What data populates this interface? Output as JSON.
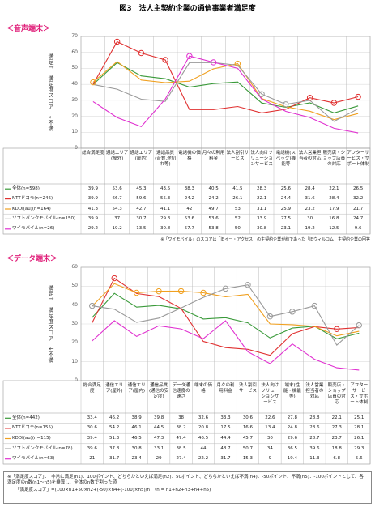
{
  "title": "図3　法人主契約企業の通信事業者満足度",
  "chart_data": [
    {
      "type": "line",
      "title": "＜音声端末＞",
      "y_label": "満足↑　満足度スコア　↓不満",
      "categories": [
        "総合満足度",
        "通話エリア(屋外)",
        "通話エリア(屋内)",
        "通話品質(音質,途切れ等)",
        "電話機の価格",
        "月々の利用料金",
        "法人割引サービス",
        "法人向けソリューションサービス",
        "電話機(スペック)機能等",
        "法人営業担当者の対応",
        "販売店・ショップ店員の対応",
        "アフターサービス・サポート体制"
      ],
      "series": [
        {
          "name": "全体(n=598)",
          "color": "#3a9a3a",
          "values": [
            39.9,
            53.6,
            45.3,
            43.5,
            38.3,
            40.5,
            41.5,
            28.3,
            25.6,
            28.4,
            22.1,
            26.5
          ]
        },
        {
          "name": "NTTドコモ(n=246)",
          "color": "#e03030",
          "values": [
            39.9,
            66.7,
            59.6,
            55.3,
            24.2,
            24.2,
            26.1,
            22.1,
            24.4,
            31.6,
            28.4,
            32.2
          ]
        },
        {
          "name": "KDDI(au)(n=164)",
          "color": "#f0a020",
          "values": [
            41.3,
            54.3,
            42.7,
            41.1,
            42.0,
            49.7,
            53.0,
            31.1,
            25.9,
            23.2,
            17.9,
            21.7
          ]
        },
        {
          "name": "ソフトバンクモバイル(n=150)",
          "color": "#999999",
          "values": [
            39.9,
            37.0,
            30.7,
            29.3,
            53.6,
            53.6,
            52.0,
            33.9,
            27.5,
            30.0,
            16.8,
            24.7
          ]
        },
        {
          "name": "ワイモバイル(n=26)",
          "color": "#e030d0",
          "values": [
            29.2,
            19.2,
            13.5,
            30.8,
            57.7,
            53.8,
            50.0,
            30.8,
            23.1,
            19.2,
            12.5,
            9.6
          ]
        }
      ],
      "ylim": [
        0,
        70
      ],
      "yticks": [
        0,
        10,
        20,
        30,
        40,
        50,
        60,
        70
      ],
      "grid": true,
      "note": "※「ワイモバイル」のスコアは「旧イー・アクセス」の主契約企業が約であった「旧ウィルコム」主契約企業の回答"
    },
    {
      "type": "line",
      "title": "＜データ端末＞",
      "y_label": "満足↑　満足度スコア　↓不満",
      "categories": [
        "総合満足度",
        "通信エリア(屋外)",
        "通信エリア(屋内)",
        "通信品質(通信の安定度)",
        "データ通信速度の速さ",
        "端末の価格",
        "月々の利用料金",
        "法人割引サービス",
        "法人向けソリューションサービス",
        "端末(性能・機能等)",
        "法人営業担当者の対応",
        "販売店・ショップ店員の対応",
        "アフターサービス・サポート体制"
      ],
      "series": [
        {
          "name": "全体(n=442)",
          "color": "#3a9a3a",
          "values": [
            33.4,
            46.2,
            38.9,
            39.8,
            38.0,
            32.6,
            33.3,
            30.6,
            22.6,
            27.8,
            28.8,
            22.1,
            25.1
          ]
        },
        {
          "name": "NTTドコモ(n=155)",
          "color": "#e03030",
          "values": [
            30.6,
            54.2,
            46.1,
            44.5,
            38.2,
            20.8,
            17.5,
            16.6,
            13.4,
            24.8,
            28.6,
            27.3,
            28.1
          ]
        },
        {
          "name": "KDDI(au)(n=115)",
          "color": "#f0a020",
          "values": [
            39.4,
            51.3,
            46.5,
            47.3,
            47.4,
            46.5,
            44.4,
            45.7,
            30.0,
            29.6,
            28.7,
            23.7,
            26.1
          ]
        },
        {
          "name": "ソフトバンクモバイル(n=78)",
          "color": "#999999",
          "values": [
            39.6,
            37.8,
            30.8,
            33.1,
            38.5,
            44.0,
            48.7,
            50.7,
            34.0,
            36.5,
            39.6,
            18.8,
            29.3
          ]
        },
        {
          "name": "ワイモバイル(n=63)",
          "color": "#e030d0",
          "values": [
            21.0,
            31.7,
            23.4,
            29.0,
            27.4,
            22.2,
            31.7,
            15.3,
            9.0,
            19.4,
            11.3,
            6.8,
            5.6
          ]
        }
      ],
      "ylim": [
        0,
        60
      ],
      "yticks": [
        0,
        10,
        20,
        30,
        40,
        50,
        60
      ],
      "grid": true
    }
  ],
  "footnote": [
    "※「満足度スコア」：　非常に満足(n1)：100ポイント、どちらかといえば満足(n2)：50ポイント、どちらかといえば不満(n4)：-50ポイント、不満(n5)：-100ポイントとして、各満足度のn数(n1～n5)を乗算し、全体のn数で割った値",
    "「満足度スコア」=(100×n1+50×n2+(-50)×n4+(-100)×n5)/n　（n = n1+n2+n3+n4+n5)"
  ]
}
